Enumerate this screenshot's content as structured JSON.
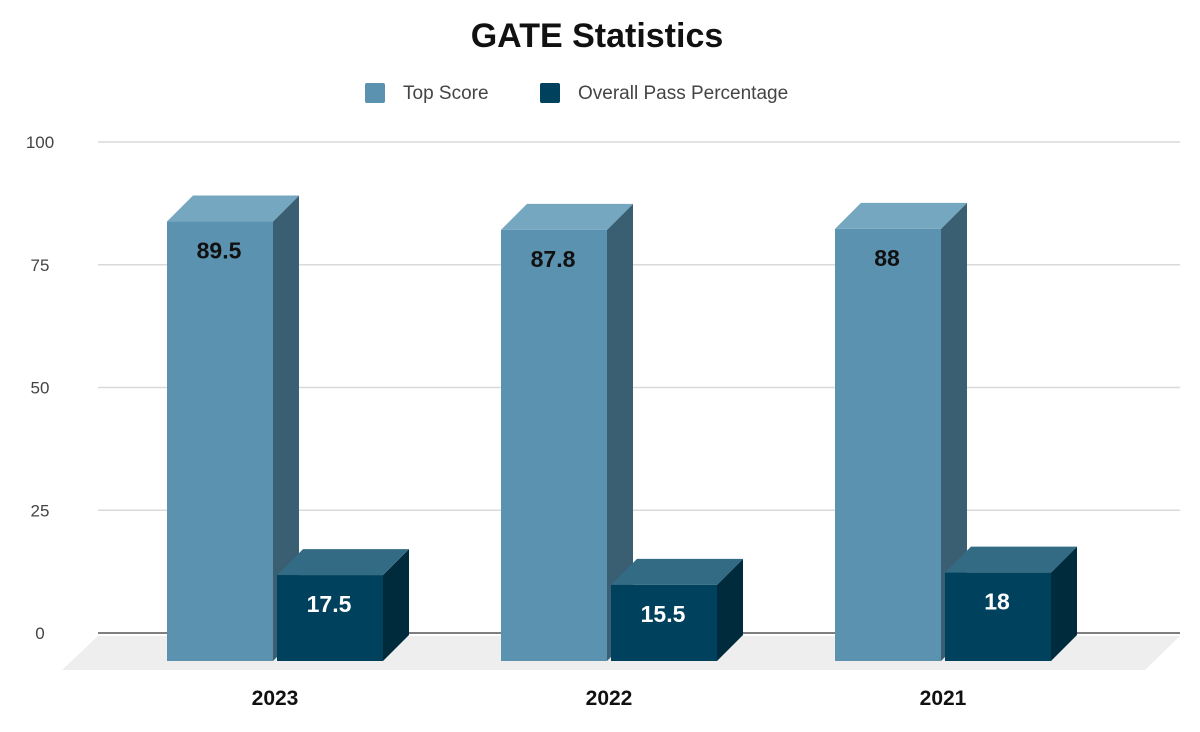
{
  "chart_data": {
    "type": "bar",
    "title": "GATE Statistics",
    "xlabel": "",
    "ylabel": "",
    "categories": [
      "2023",
      "2022",
      "2021"
    ],
    "series": [
      {
        "name": "Top Score",
        "values": [
          89.5,
          87.8,
          88
        ],
        "color": "#5a92b0"
      },
      {
        "name": "Overall Pass Percentage",
        "values": [
          17.5,
          15.5,
          18
        ],
        "color": "#00415e"
      }
    ],
    "ylim": [
      0,
      100
    ],
    "yticks": [
      "0",
      "25",
      "50",
      "75",
      "100"
    ],
    "grid": true,
    "legend": "top",
    "style": "3d"
  }
}
